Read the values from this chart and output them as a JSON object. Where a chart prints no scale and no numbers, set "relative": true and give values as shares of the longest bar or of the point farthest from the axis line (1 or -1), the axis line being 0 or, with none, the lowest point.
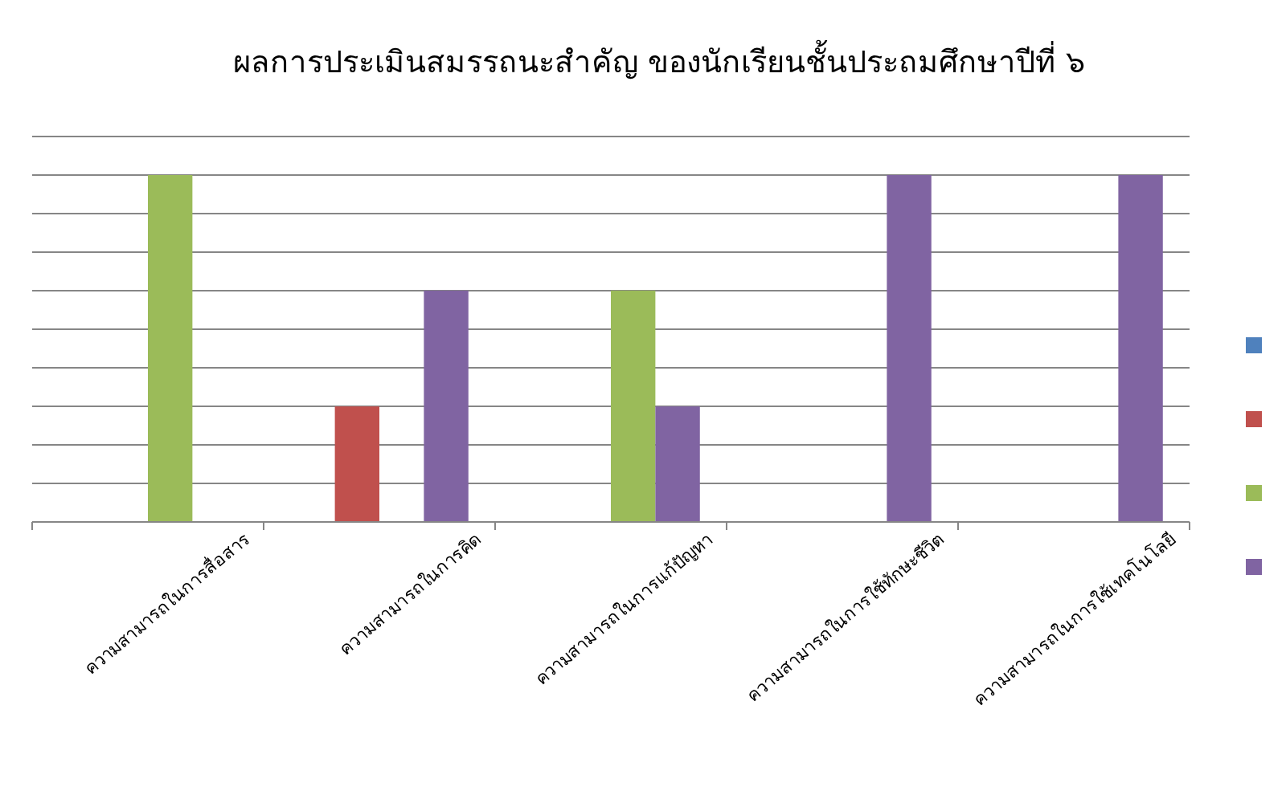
{
  "chart_data": {
    "type": "bar",
    "title": "ผลการประเมินสมรรถนะสำคัญ  ของนักเรียนชั้นประถมศึกษาปีที่  ๖",
    "relative": true,
    "grid": "y",
    "categories": [
      "ความสามารถในการสื่อสาร",
      "ความสามารถในการคิด",
      "ความสามารถในการแก้ปัญหา",
      "ความสามารถในการใช้ทักษะชีวิต",
      "ความสามารถในการใช้เทคโนโลยี"
    ],
    "series": [
      {
        "color": "#4f81bd",
        "values": [
          0,
          0,
          0,
          0,
          0
        ]
      },
      {
        "color": "#c0504d",
        "values": [
          0,
          0.333,
          0,
          0,
          0
        ]
      },
      {
        "color": "#9bbb59",
        "values": [
          1,
          0,
          0.667,
          0,
          0
        ]
      },
      {
        "color": "#8064a2",
        "values": [
          0,
          0.667,
          0.333,
          1,
          1
        ]
      }
    ]
  }
}
